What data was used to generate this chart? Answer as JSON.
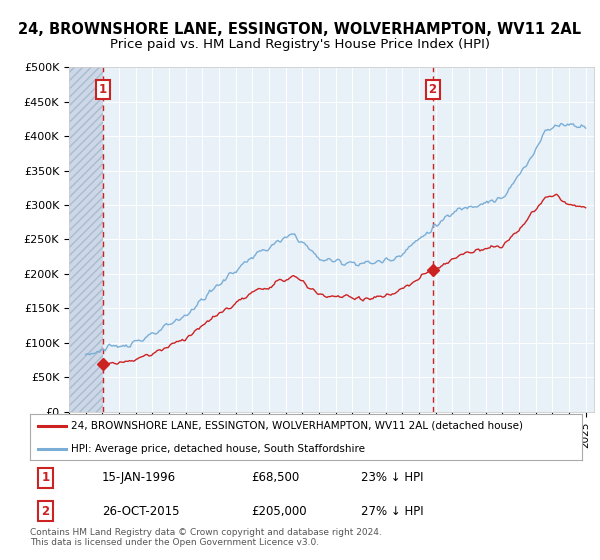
{
  "title": "24, BROWNSHORE LANE, ESSINGTON, WOLVERHAMPTON, WV11 2AL",
  "subtitle": "Price paid vs. HM Land Registry's House Price Index (HPI)",
  "ylim": [
    0,
    500000
  ],
  "yticks": [
    0,
    50000,
    100000,
    150000,
    200000,
    250000,
    300000,
    350000,
    400000,
    450000,
    500000
  ],
  "ytick_labels": [
    "£0",
    "£50K",
    "£100K",
    "£150K",
    "£200K",
    "£250K",
    "£300K",
    "£350K",
    "£400K",
    "£450K",
    "£500K"
  ],
  "xlim_start": 1994.0,
  "xlim_end": 2025.5,
  "transaction1_x": 1996.04,
  "transaction1_y": 68500,
  "transaction1_date": "15-JAN-1996",
  "transaction1_price": "£68,500",
  "transaction1_hpi": "23% ↓ HPI",
  "transaction2_x": 2015.82,
  "transaction2_y": 205000,
  "transaction2_date": "26-OCT-2015",
  "transaction2_price": "£205,000",
  "transaction2_hpi": "27% ↓ HPI",
  "hpi_color": "#7aaed6",
  "price_color": "#cc2222",
  "dot_color": "#cc2222",
  "vline_color": "#cc2222",
  "background_color": "#e8f0f8",
  "legend1": "24, BROWNSHORE LANE, ESSINGTON, WOLVERHAMPTON, WV11 2AL (detached house)",
  "legend2": "HPI: Average price, detached house, South Staffordshire",
  "footer": "Contains HM Land Registry data © Crown copyright and database right 2024.\nThis data is licensed under the Open Government Licence v3.0.",
  "box_color": "#cc2222",
  "title_fontsize": 10.5,
  "subtitle_fontsize": 9.5
}
